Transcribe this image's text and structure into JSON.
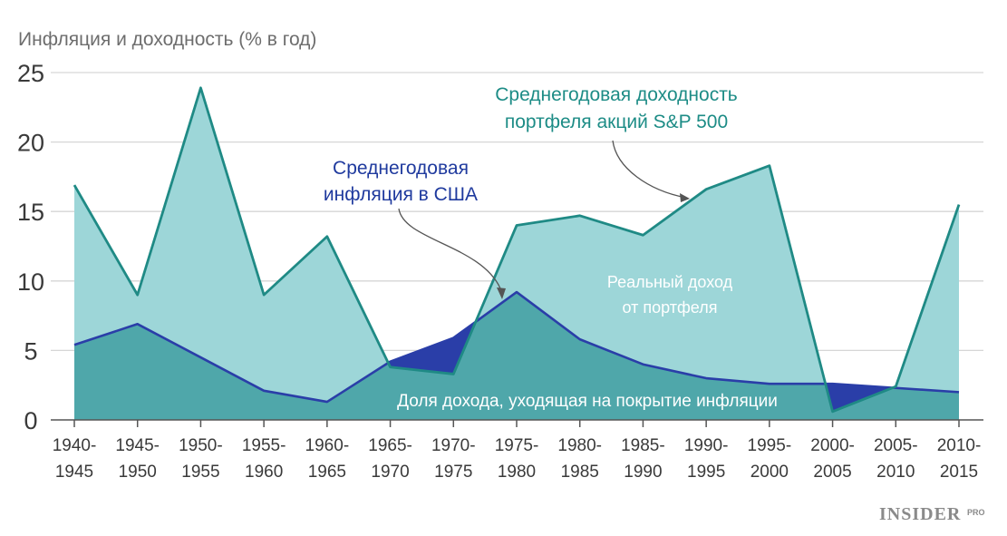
{
  "chart_data": {
    "type": "area",
    "title": "Инфляция и доходность (% в год)",
    "ylim": [
      0,
      25
    ],
    "yticks": [
      0,
      5,
      10,
      15,
      20,
      25
    ],
    "categories": [
      [
        "1940-",
        "1945"
      ],
      [
        "1945-",
        "1950"
      ],
      [
        "1950-",
        "1955"
      ],
      [
        "1955-",
        "1960"
      ],
      [
        "1960-",
        "1965"
      ],
      [
        "1965-",
        "1970"
      ],
      [
        "1970-",
        "1975"
      ],
      [
        "1975-",
        "1980"
      ],
      [
        "1980-",
        "1985"
      ],
      [
        "1985-",
        "1990"
      ],
      [
        "1990-",
        "1995"
      ],
      [
        "1995-",
        "2000"
      ],
      [
        "2000-",
        "2005"
      ],
      [
        "2005-",
        "2010"
      ],
      [
        "2010-",
        "2015"
      ]
    ],
    "series": [
      {
        "name": "Среднегодовая доходность портфеля акций S&P 500",
        "color": "#1f8a85",
        "fill": "#9dd6d8",
        "values": [
          16.9,
          9.0,
          23.9,
          9.0,
          13.2,
          3.8,
          3.3,
          14.0,
          14.7,
          13.3,
          16.6,
          18.3,
          0.6,
          2.4,
          15.5
        ]
      },
      {
        "name": "Среднегодовая инфляция в США",
        "color": "#2a3ea8",
        "fill": "#2a3ea8",
        "values": [
          5.4,
          6.9,
          4.5,
          2.1,
          1.3,
          4.2,
          5.9,
          9.2,
          5.8,
          4.0,
          3.0,
          2.6,
          2.6,
          2.3,
          2.0
        ]
      }
    ],
    "annotations": {
      "sp500": [
        "Среднегодовая доходность",
        "портфеля акций S&P 500"
      ],
      "inflation": [
        "Среднегодовая",
        "инфляция в США"
      ],
      "real_income": [
        "Реальный доход",
        "от портфеля"
      ],
      "inflation_share": "Доля дохода, уходящая на покрытие инфляции"
    },
    "colors": {
      "overlap": "#4fa7aa",
      "grid": "#d6d6d6",
      "axis": "#555555"
    }
  },
  "brand": {
    "name": "INSIDER",
    "suffix": "PRO"
  }
}
